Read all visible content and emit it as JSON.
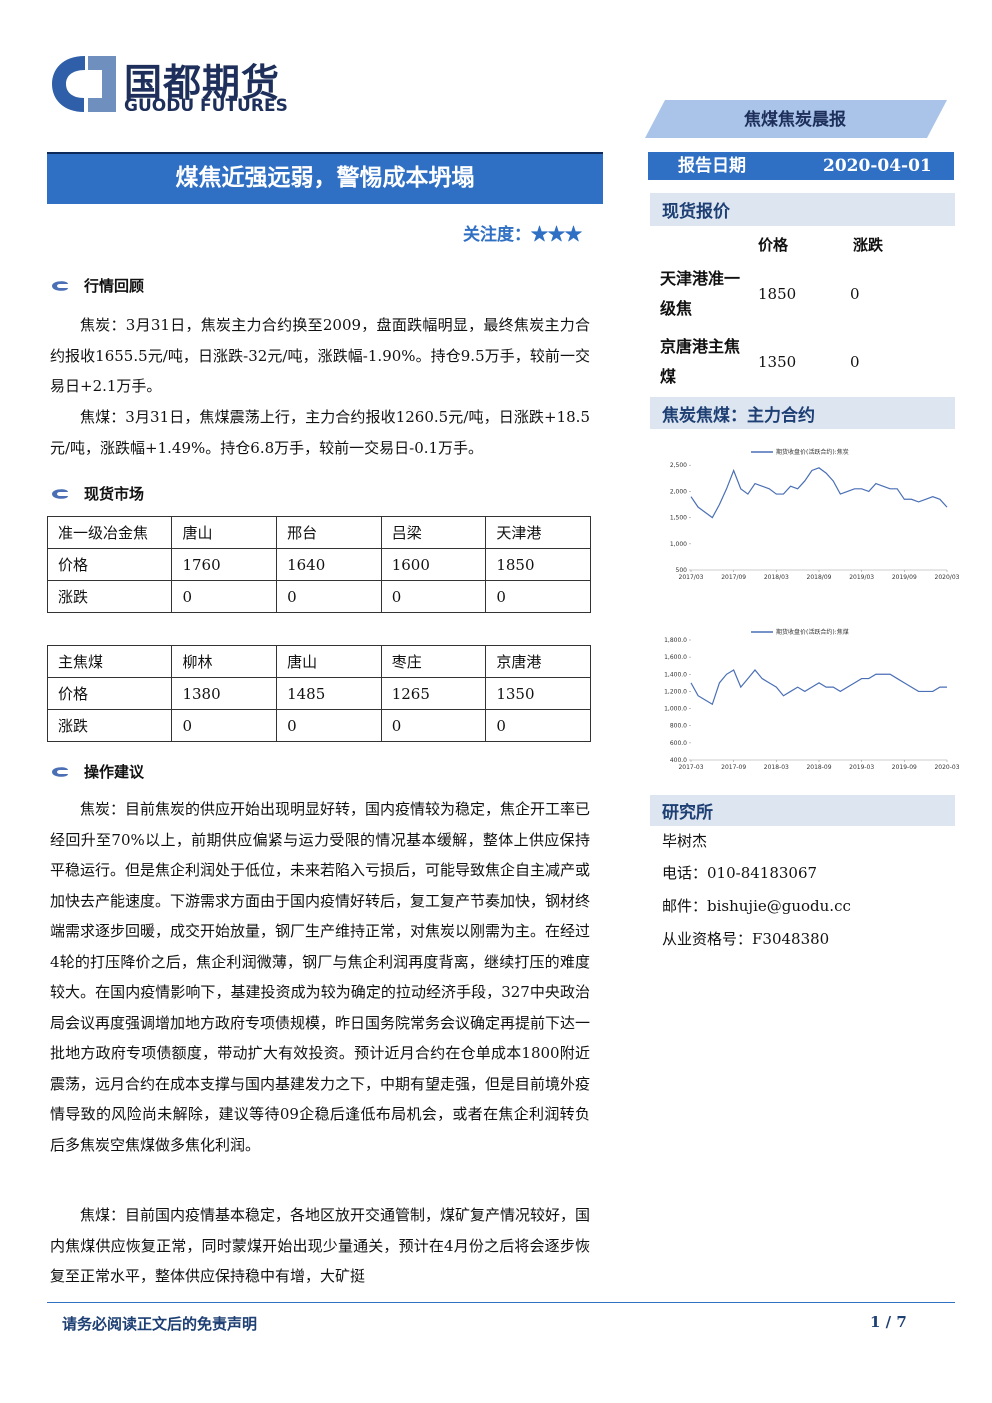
{
  "header": {
    "logo_cn": "国都期货",
    "logo_en": "GUODU FUTURES",
    "report_type": "焦煤焦炭晨报",
    "title": "煤焦近强远弱，警惕成本坍塌",
    "attention_label": "关注度：",
    "attention_stars": "★★★"
  },
  "sidebar": {
    "report_date_label": "报告日期",
    "report_date": "2020-04-01",
    "spot": {
      "title": "现货报价",
      "headers": [
        "价格",
        "涨跌"
      ],
      "rows": [
        [
          "天津港准一级焦",
          1850,
          0
        ],
        [
          "京唐港主焦煤",
          1350,
          0
        ]
      ]
    },
    "chart_title": "焦炭焦煤：主力合约",
    "research": {
      "title": "研究所",
      "name": "毕树杰",
      "phone": "电话：010-84183067",
      "email": "邮件：bishujie@guodu.cc",
      "license": "从业资格号：F3048380"
    }
  },
  "sections": [
    {
      "heading": "行情回顾",
      "paragraphs": [
        "焦炭：3月31日，焦炭主力合约换至2009，盘面跌幅明显，最终焦炭主力合约报收1655.5元/吨，日涨跌-32元/吨，涨跌幅-1.90%。持仓9.5万手，较前一交易日+2.1万手。",
        "焦煤：3月31日，焦煤震荡上行，主力合约报收1260.5元/吨，日涨跌+18.5元/吨，涨跌幅+1.49%。持仓6.8万手，较前一交易日-0.1万手。"
      ]
    },
    {
      "heading": "现货市场",
      "tables": [
        {
          "header": [
            "准一级冶金焦",
            "唐山",
            "邢台",
            "吕梁",
            "天津港"
          ],
          "rows": [
            [
              "价格",
              1760,
              1640,
              1600,
              1850
            ],
            [
              "涨跌",
              0,
              0,
              0,
              0
            ]
          ]
        },
        {
          "header": [
            "主焦煤",
            "柳林",
            "唐山",
            "枣庄",
            "京唐港"
          ],
          "rows": [
            [
              "价格",
              1380,
              1485,
              1265,
              1350
            ],
            [
              "涨跌",
              0,
              0,
              0,
              0
            ]
          ]
        }
      ]
    },
    {
      "heading": "操作建议",
      "paragraphs": [
        "焦炭：目前焦炭的供应开始出现明显好转，国内疫情较为稳定，焦企开工率已经回升至70%以上，前期供应偏紧与运力受限的情况基本缓解，整体上供应保持平稳运行。但是焦企利润处于低位，未来若陷入亏损后，可能导致焦企自主减产或加快去产能速度。下游需求方面由于国内疫情好转后，复工复产节奏加快，钢材终端需求逐步回暖，成交开始放量，钢厂生产维持正常，对焦炭以刚需为主。在经过4轮的打压降价之后，焦企利润微薄，钢厂与焦企利润再度背离，继续打压的难度较大。在国内疫情影响下，基建投资成为较为确定的拉动经济手段，327中央政治局会议再度强调增加地方政府专项债规模，昨日国务院常务会议确定再提前下达一批地方政府专项债额度，带动扩大有效投资。预计近月合约在仓单成本1800附近震荡，远月合约在成本支撑与国内基建发力之下，中期有望走强，但是目前境外疫情导致的风险尚未解除，建议等待09企稳后逢低布局机会，或者在焦企利润转负后多焦炭空焦煤做多焦化利润。",
        "焦煤：目前国内疫情基本稳定，各地区放开交通管制，煤矿复产情况较好，国内焦煤供应恢复正常，同时蒙煤开始出现少量通关，预计在4月份之后将会逐步恢复至正常水平，整体供应保持稳中有增，大矿挺"
      ]
    }
  ],
  "footer": {
    "disclaimer": "请务必阅读正文后的免责声明",
    "page": "1 / 7"
  },
  "chart_data": [
    {
      "type": "line",
      "series": [
        {
          "name": "期货收盘价(活跃合约):焦炭",
          "color": "#4a6fb5",
          "values": [
            1900,
            1700,
            1600,
            1500,
            1750,
            2050,
            2400,
            2050,
            1950,
            2150,
            2100,
            2050,
            1950,
            1950,
            2100,
            2050,
            2200,
            2400,
            2450,
            2350,
            2200,
            1950,
            2000,
            2050,
            2050,
            2000,
            2150,
            2100,
            2050,
            2050,
            1850,
            1850,
            1800,
            1850,
            1900,
            1850,
            1700
          ]
        }
      ],
      "x": [
        "2017/03",
        "2017/04",
        "2017/05",
        "2017/06",
        "2017/07",
        "2017/08",
        "2017/09",
        "2017/10",
        "2017/11",
        "2017/12",
        "2018/01",
        "2018/02",
        "2018/03",
        "2018/04",
        "2018/05",
        "2018/06",
        "2018/07",
        "2018/08",
        "2018/09",
        "2018/10",
        "2018/11",
        "2018/12",
        "2019/01",
        "2019/02",
        "2019/03",
        "2019/04",
        "2019/05",
        "2019/06",
        "2019/07",
        "2019/08",
        "2019/09",
        "2019/10",
        "2019/11",
        "2019/12",
        "2020/01",
        "2020/02",
        "2020/03"
      ],
      "xticks": [
        "2017/03",
        "2017/09",
        "2018/03",
        "2018/09",
        "2019/03",
        "2019/09",
        "2020/03"
      ],
      "ylim": [
        500,
        2600
      ],
      "yticks": [
        500,
        {
          "value": 1000,
          "label": "1,000"
        },
        {
          "value": 1500,
          "label": "1,500"
        },
        {
          "value": 2000,
          "label": "2,000"
        },
        {
          "value": 2500,
          "label": "2,500"
        }
      ]
    },
    {
      "type": "line",
      "series": [
        {
          "name": "期货收盘价(活跃合约):焦煤",
          "color": "#4a6fb5",
          "values": [
            1300,
            1150,
            1100,
            1050,
            1300,
            1400,
            1450,
            1250,
            1350,
            1450,
            1350,
            1300,
            1250,
            1150,
            1200,
            1250,
            1200,
            1250,
            1300,
            1250,
            1250,
            1200,
            1250,
            1300,
            1350,
            1350,
            1400,
            1400,
            1400,
            1350,
            1300,
            1250,
            1200,
            1200,
            1200,
            1250,
            1250
          ]
        }
      ],
      "x": [
        "2017-03",
        "2017-04",
        "2017-05",
        "2017-06",
        "2017-07",
        "2017-08",
        "2017-09",
        "2017-10",
        "2017-11",
        "2017-12",
        "2018-01",
        "2018-02",
        "2018-03",
        "2018-04",
        "2018-05",
        "2018-06",
        "2018-07",
        "2018-08",
        "2018-09",
        "2018-10",
        "2018-11",
        "2018-12",
        "2019-01",
        "2019-02",
        "2019-03",
        "2019-04",
        "2019-05",
        "2019-06",
        "2019-07",
        "2019-08",
        "2019-09",
        "2019-10",
        "2019-11",
        "2019-12",
        "2020-01",
        "2020-02",
        "2020-03"
      ],
      "xticks": [
        "2017-03",
        "2017-09",
        "2018-03",
        "2018-09",
        "2019-03",
        "2019-09",
        "2020-03"
      ],
      "ylim": [
        400,
        1800
      ],
      "yticks": [
        {
          "value": 400,
          "label": "400.0"
        },
        {
          "value": 600,
          "label": "600.0"
        },
        {
          "value": 800,
          "label": "800.0"
        },
        {
          "value": 1000,
          "label": "1,000.0"
        },
        {
          "value": 1200,
          "label": "1,200.0"
        },
        {
          "value": 1400,
          "label": "1,400.0"
        },
        {
          "value": 1600,
          "label": "1,600.0"
        },
        {
          "value": 1800,
          "label": "1,800.0"
        }
      ]
    }
  ]
}
